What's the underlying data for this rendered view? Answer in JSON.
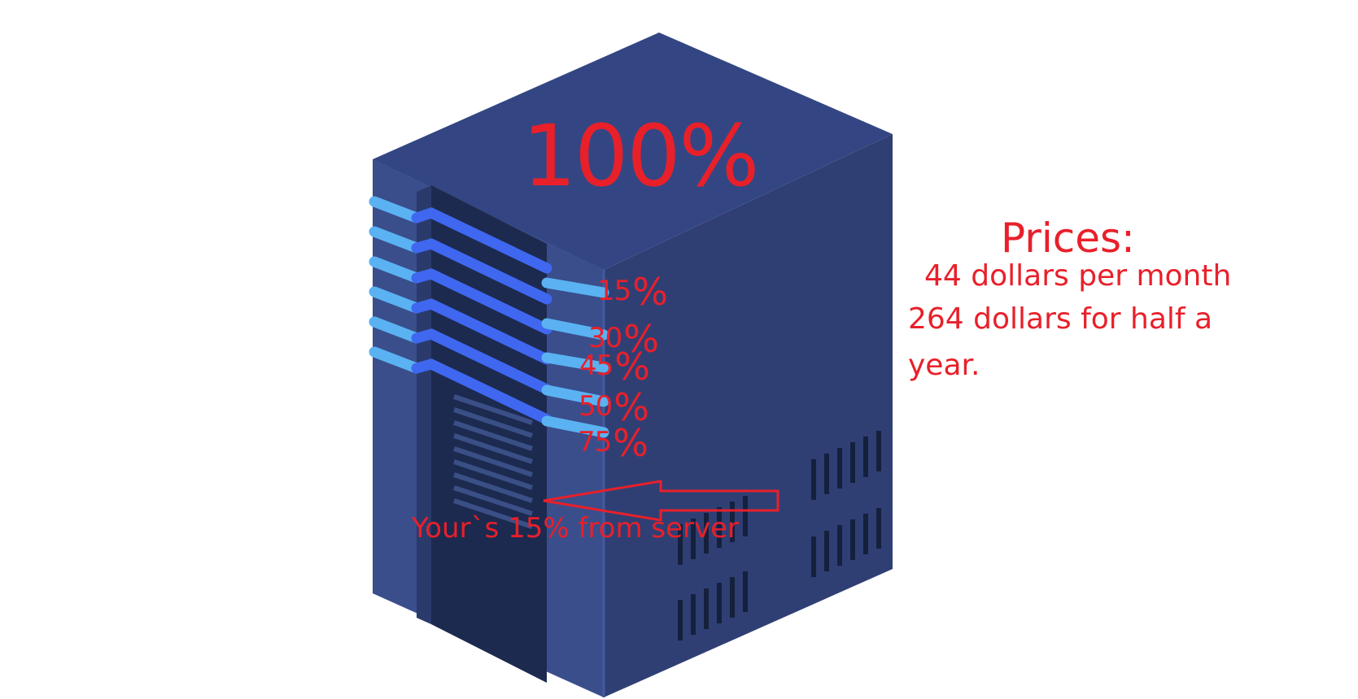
{
  "server": {
    "capacity_total": "100%",
    "tiers": [
      {
        "number": "15",
        "symbol": "%"
      },
      {
        "number": "30",
        "symbol": "%"
      },
      {
        "number": "45",
        "symbol": "%"
      },
      {
        "number": "50",
        "symbol": "%"
      },
      {
        "number": "75",
        "symbol": "%"
      }
    ],
    "share_caption": "Your`s 15% from server",
    "colors": {
      "body_front": "#3a4e8c",
      "body_side": "#2f3f74",
      "body_top": "#334683",
      "door": "#1c2a4f",
      "stripe_light": "#5ab2f2",
      "stripe_bright": "#3f67f0",
      "text_red": "#e8202a"
    }
  },
  "prices": {
    "heading": "Prices:",
    "monthly": "44 dollars per month",
    "half_year": "264 dollars for half a",
    "half_year_cont": "year."
  }
}
